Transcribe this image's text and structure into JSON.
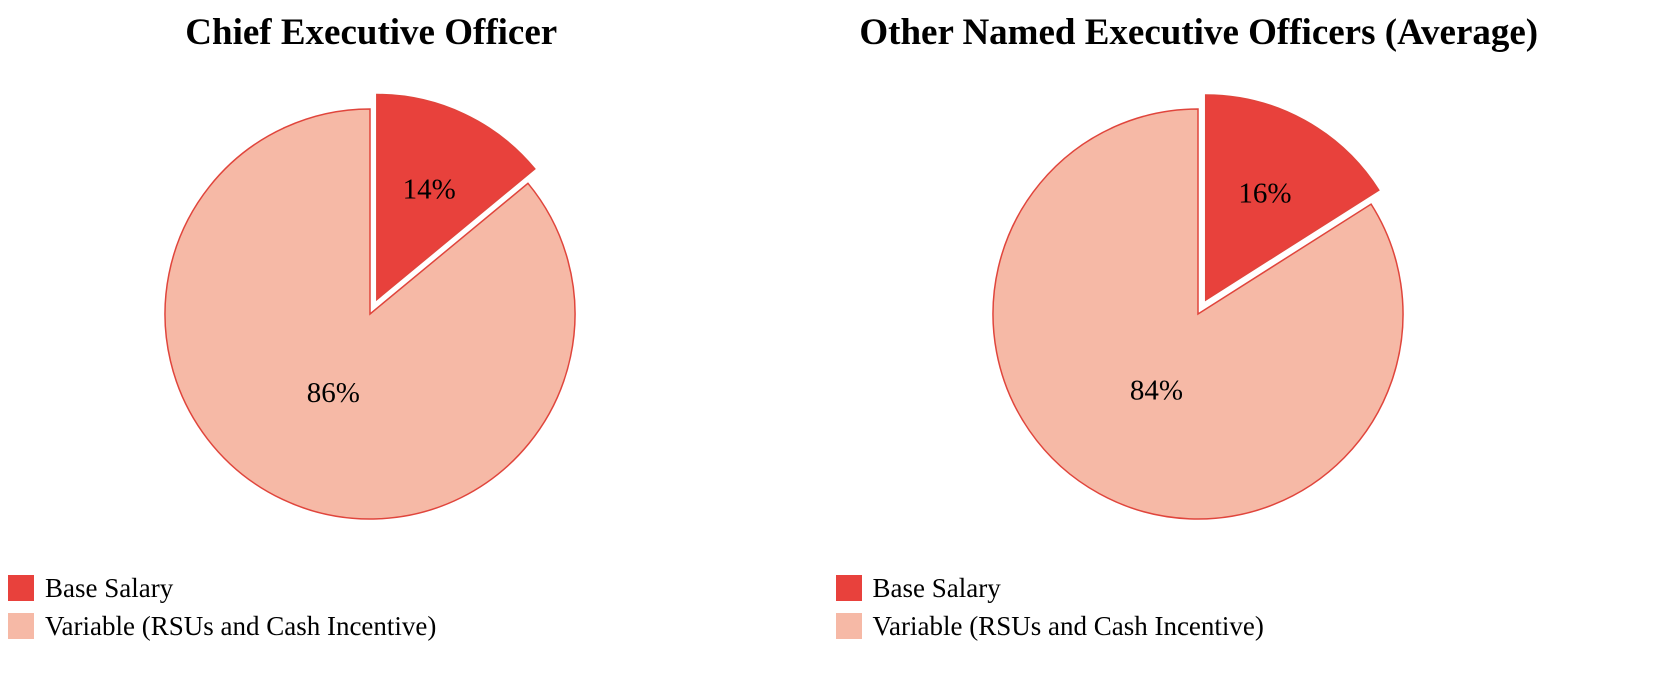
{
  "chart_data": [
    {
      "type": "pie",
      "title": "Chief Executive Officer",
      "labels": [
        "Base Salary",
        "Variable (RSUs and Cash Incentive)"
      ],
      "values": [
        14,
        86
      ],
      "data_labels": [
        "14%",
        "86%"
      ],
      "colors": [
        "#e8413c",
        "#f6b9a6"
      ],
      "stroke_color": "#e0453c",
      "exploded_slice": "Base Salary",
      "start_angle_deg": 0,
      "direction": "clockwise",
      "legend_position": "bottom-left"
    },
    {
      "type": "pie",
      "title": "Other Named Executive Officers (Average)",
      "labels": [
        "Base Salary",
        "Variable (RSUs and Cash Incentive)"
      ],
      "values": [
        16,
        84
      ],
      "data_labels": [
        "16%",
        "84%"
      ],
      "colors": [
        "#e8413c",
        "#f6b9a6"
      ],
      "stroke_color": "#e0453c",
      "exploded_slice": "Base Salary",
      "start_angle_deg": 0,
      "direction": "clockwise",
      "legend_position": "bottom-left"
    }
  ]
}
